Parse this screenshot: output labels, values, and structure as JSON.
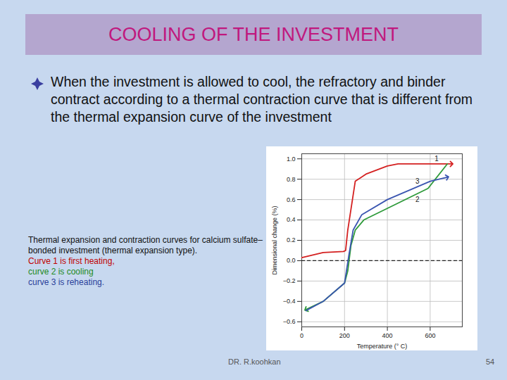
{
  "slide": {
    "heading": "COOLING OF THE INVESTMENT",
    "bullet": "When the investment is allowed to cool, the refractory and binder contract according to a thermal  contraction curve that is different from the thermal expansion curve of the investment",
    "caption": [
      {
        "text": "Thermal expansion and contraction curves for calcium sulfate–bonded investment (thermal expansion type).",
        "color": "#111111"
      },
      {
        "text": "Curve 1 is first heating,",
        "color": "#c00000"
      },
      {
        "text": "curve 2 is cooling",
        "color": "#1e8a1e"
      },
      {
        "text": " curve 3 is reheating.",
        "color": "#2a3f9a"
      }
    ],
    "footer": "DR. R.koohkan",
    "page": "54"
  },
  "chart_data": {
    "type": "line",
    "x_label": "Temperature (° C)",
    "y_label": "Dimensional change (%)",
    "xlim": [
      0,
      750
    ],
    "ylim": [
      -0.65,
      1.05
    ],
    "xticks": [
      0,
      200,
      400,
      600
    ],
    "yticks": [
      {
        "value": -0.6,
        "label": "−0.6"
      },
      {
        "value": -0.4,
        "label": "−0.4"
      },
      {
        "value": -0.2,
        "label": "−0.2"
      },
      {
        "value": 0,
        "label": "0.0"
      },
      {
        "value": 0.2,
        "label": "0.2"
      },
      {
        "value": 0.4,
        "label": "0.4"
      },
      {
        "value": 0.6,
        "label": "0.6"
      },
      {
        "value": 0.8,
        "label": "0.8"
      },
      {
        "value": 1,
        "label": "1.0"
      }
    ],
    "grid": true,
    "hline": 0,
    "series": [
      {
        "name": "1",
        "color": "#d42020",
        "marker": "arrow",
        "x": [
          0,
          100,
          195,
          205,
          215,
          250,
          300,
          400,
          450,
          700
        ],
        "values": [
          0.03,
          0.08,
          0.09,
          0.1,
          0.3,
          0.78,
          0.85,
          0.93,
          0.95,
          0.95
        ],
        "label_at": {
          "x": 630,
          "y": 1.0
        }
      },
      {
        "name": "2",
        "color": "#2e9a3a",
        "marker": "arrow",
        "x": [
          680,
          590,
          290,
          250,
          230,
          215,
          200,
          100,
          20
        ],
        "values": [
          0.95,
          0.71,
          0.4,
          0.3,
          0.15,
          -0.1,
          -0.22,
          -0.4,
          -0.48
        ],
        "label_at": {
          "x": 540,
          "y": 0.6
        }
      },
      {
        "name": "3",
        "color": "#3a55b0",
        "marker": "arrow",
        "x": [
          20,
          100,
          200,
          220,
          240,
          280,
          400,
          600,
          680
        ],
        "values": [
          -0.49,
          -0.4,
          -0.22,
          0.05,
          0.3,
          0.45,
          0.6,
          0.78,
          0.82
        ],
        "label_at": {
          "x": 540,
          "y": 0.78
        }
      }
    ]
  }
}
